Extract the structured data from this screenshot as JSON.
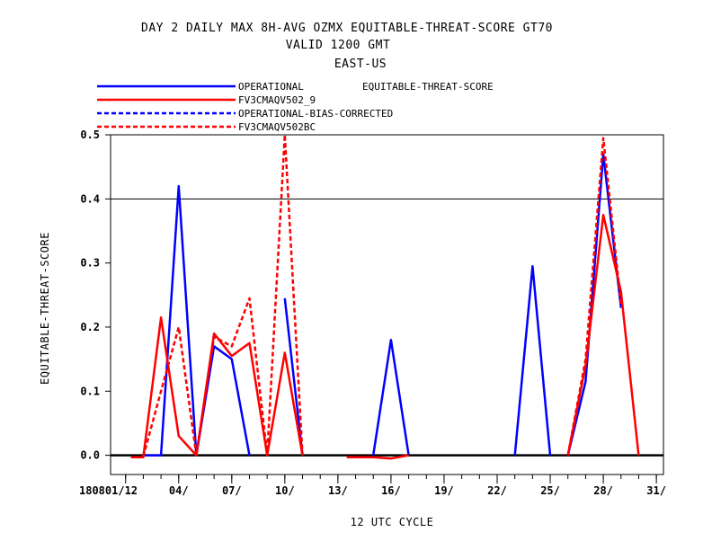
{
  "chart_data": {
    "type": "line",
    "title_lines": [
      "DAY 2 DAILY MAX   8H-AVG OZMX EQUITABLE-THREAT-SCORE GT70",
      "VALID 1200 GMT",
      "EAST-US"
    ],
    "legend_note": "EQUITABLE-THREAT-SCORE",
    "xlabel": "12 UTC CYCLE",
    "ylabel": "EQUITABLE-THREAT-SCORE",
    "x_tick_labels": [
      "180801/12",
      "04/",
      "07/",
      "10/",
      "13/",
      "16/",
      "19/",
      "22/",
      "25/",
      "28/",
      "31/"
    ],
    "x_tick_days": [
      1,
      4,
      7,
      10,
      13,
      16,
      19,
      22,
      25,
      28,
      31
    ],
    "xlim": [
      0.15,
      31.4
    ],
    "ylim": [
      -0.03,
      0.5
    ],
    "y_ticks": [
      0.0,
      0.1,
      0.2,
      0.3,
      0.4,
      0.5
    ],
    "y_tick_labels": [
      "0.0",
      "0.1",
      "0.2",
      "0.3",
      "0.4",
      "0.5"
    ],
    "reference_lines": [
      0.0,
      0.4
    ],
    "series": [
      {
        "name": "OPERATIONAL",
        "color": "#0000ff",
        "dash": "solid",
        "segments": [
          [
            [
              2,
              0.0
            ],
            [
              3,
              0.0
            ],
            [
              4,
              0.42
            ],
            [
              5,
              0.0
            ],
            [
              6,
              0.17
            ],
            [
              7,
              0.15
            ],
            [
              8,
              0.0
            ]
          ],
          [
            [
              10,
              0.245
            ],
            [
              11,
              0.0
            ]
          ],
          [
            [
              15,
              0.0
            ],
            [
              16,
              0.18
            ],
            [
              17,
              0.0
            ]
          ],
          [
            [
              23,
              0.0
            ],
            [
              24,
              0.295
            ],
            [
              25,
              0.0
            ]
          ],
          [
            [
              26,
              0.0
            ],
            [
              27,
              0.115
            ],
            [
              28,
              0.47
            ],
            [
              29,
              0.23
            ]
          ]
        ]
      },
      {
        "name": "FV3CMAQV502_9",
        "color": "#ff0000",
        "dash": "solid",
        "segments": [
          [
            [
              1.3,
              -0.003
            ],
            [
              2,
              -0.003
            ],
            [
              3,
              0.215
            ],
            [
              4,
              0.03
            ],
            [
              5,
              0.0
            ],
            [
              6,
              0.19
            ],
            [
              7,
              0.155
            ],
            [
              8,
              0.175
            ],
            [
              9,
              0.0
            ],
            [
              10,
              0.16
            ],
            [
              11,
              0.0
            ]
          ],
          [
            [
              13.5,
              -0.003
            ],
            [
              15,
              -0.003
            ],
            [
              16,
              -0.005
            ],
            [
              17,
              0.0
            ]
          ],
          [
            [
              26,
              0.0
            ],
            [
              27,
              0.14
            ],
            [
              28,
              0.375
            ],
            [
              29,
              0.255
            ],
            [
              30,
              0.0
            ]
          ]
        ]
      },
      {
        "name": "OPERATIONAL-BIAS-CORRECTED",
        "color": "#0000ff",
        "dash": "dashed",
        "segments": []
      },
      {
        "name": "FV3CMAQV502BC",
        "color": "#ff0000",
        "dash": "dashed",
        "segments": [
          [
            [
              2,
              -0.002
            ],
            [
              3,
              0.1
            ],
            [
              4,
              0.2
            ],
            [
              5,
              0.0
            ],
            [
              6,
              0.185
            ],
            [
              7,
              0.17
            ],
            [
              8,
              0.245
            ],
            [
              9,
              0.0
            ],
            [
              10,
              0.5
            ],
            [
              11,
              0.0
            ]
          ],
          [
            [
              26,
              0.0
            ],
            [
              27,
              0.15
            ],
            [
              28,
              0.495
            ],
            [
              29,
              0.235
            ]
          ]
        ]
      }
    ],
    "legend_placement": "top-left, above plot"
  }
}
